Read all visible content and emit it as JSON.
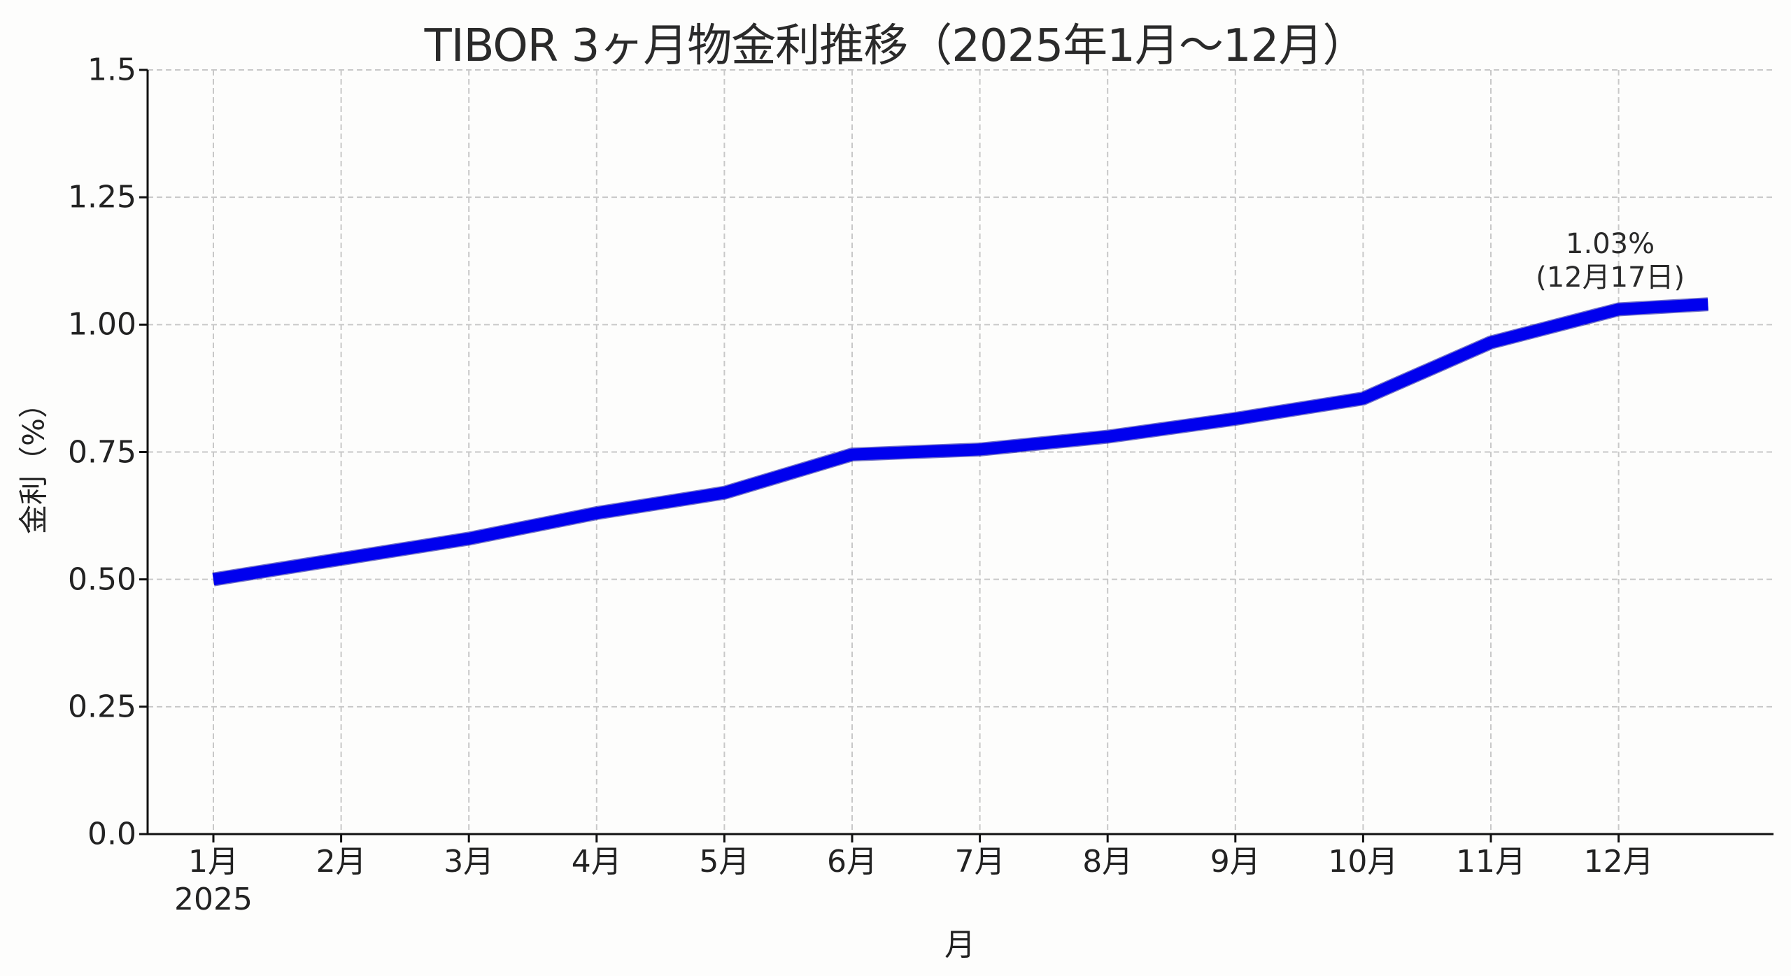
{
  "title": "TIBOR 3ヶ月物金利推移（2025年1月〜12月）",
  "chart_data": {
    "type": "line",
    "title": "TIBOR 3ヶ月物金利推移（2025年1月〜12月）",
    "xlabel": "月",
    "ylabel": "金利（%）",
    "categories": [
      "1月",
      "2月",
      "3月",
      "4月",
      "5月",
      "6月",
      "7月",
      "8月",
      "9月",
      "10月",
      "11月",
      "12月"
    ],
    "x_sublabel": {
      "index": 0,
      "text": "2025"
    },
    "series": [
      {
        "name": "TIBOR 3ヶ月物",
        "color": "#0000ee",
        "x": [
          1,
          2,
          3,
          4,
          5,
          6,
          7,
          8,
          9,
          10,
          11,
          12,
          12.7
        ],
        "values": [
          0.5,
          0.54,
          0.58,
          0.63,
          0.67,
          0.745,
          0.755,
          0.78,
          0.815,
          0.855,
          0.965,
          1.03,
          1.04
        ]
      }
    ],
    "yticks": [
      "0.0",
      "0.25",
      "0.50",
      "0.75",
      "1.00",
      "1.25",
      "1.5"
    ],
    "ytick_values": [
      0,
      0.25,
      0.5,
      0.75,
      1.0,
      1.25,
      1.5
    ],
    "ylim": [
      0,
      1.5
    ],
    "xlim": [
      0.5,
      13.2
    ],
    "grid": true,
    "legend": null,
    "annotations": [
      {
        "line1": "1.03%",
        "line2": "(12月17日)",
        "x": 12,
        "y": 1.03
      }
    ]
  },
  "colors": {
    "line": "#0000ee",
    "grid": "#c8c8c8",
    "axis": "#111111",
    "text": "#222222",
    "background": "#fdfdfc"
  }
}
